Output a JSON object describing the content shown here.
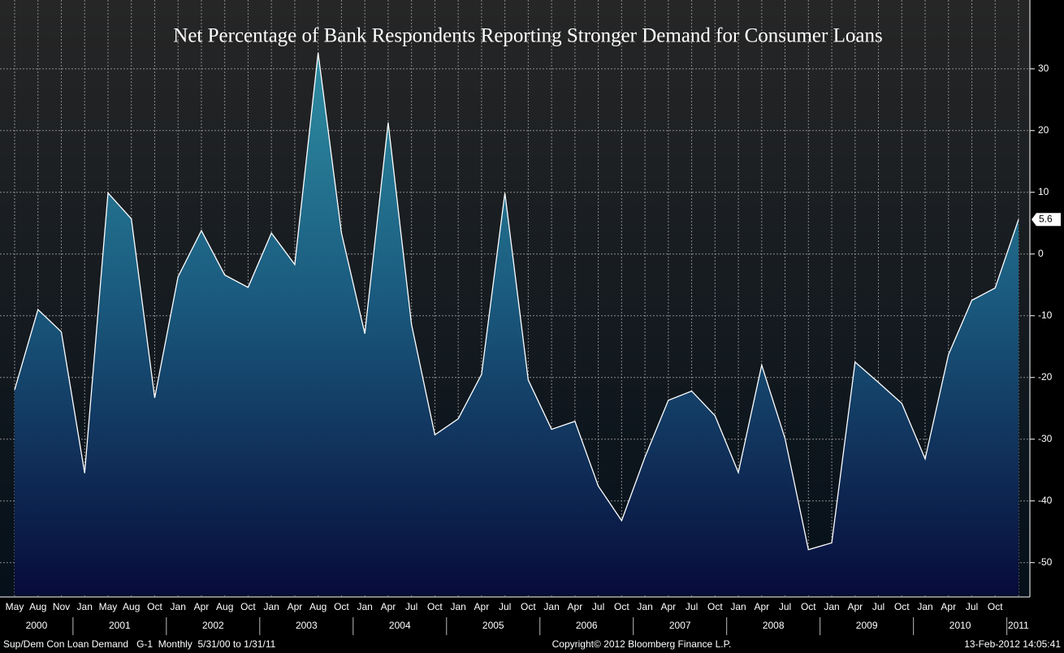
{
  "chart_data": {
    "type": "area",
    "title": "Net Percentage of Bank Respondents Reporting Stronger Demand for Consumer Loans",
    "categories": [
      "May",
      "Aug",
      "Nov",
      "Jan",
      "May",
      "Aug",
      "Oct",
      "Jan",
      "Apr",
      "Aug",
      "Oct",
      "Jan",
      "Apr",
      "Aug",
      "Oct",
      "Jan",
      "Apr",
      "Jul",
      "Oct",
      "Jan",
      "Apr",
      "Jul",
      "Oct",
      "Jan",
      "Apr",
      "Jul",
      "Oct",
      "Jan",
      "Apr",
      "Jul",
      "Oct",
      "Jan",
      "Apr",
      "Jul",
      "Oct",
      "Jan",
      "Apr",
      "Jul",
      "Oct",
      "Jan",
      "Apr",
      "Jul",
      "Oct",
      null
    ],
    "years": [
      {
        "label": "2000",
        "months": 3
      },
      {
        "label": "2001",
        "months": 4
      },
      {
        "label": "2002",
        "months": 4
      },
      {
        "label": "2003",
        "months": 4
      },
      {
        "label": "2004",
        "months": 4
      },
      {
        "label": "2005",
        "months": 4
      },
      {
        "label": "2006",
        "months": 4
      },
      {
        "label": "2007",
        "months": 4
      },
      {
        "label": "2008",
        "months": 4
      },
      {
        "label": "2009",
        "months": 4
      },
      {
        "label": "2010",
        "months": 4
      },
      {
        "label": "2011",
        "months": 1
      }
    ],
    "series": [
      {
        "name": "Sup/Dem Con Loan Demand",
        "color": "#ffffff",
        "values": [
          -22,
          -9,
          -12.6,
          -35.5,
          9.9,
          5.7,
          -23.3,
          -3.7,
          3.8,
          -3.4,
          -5.4,
          3.4,
          -1.7,
          32.6,
          3.4,
          -12.9,
          21.3,
          -11.4,
          -29.3,
          -26.7,
          -19.5,
          9.9,
          -20.4,
          -28.4,
          -27.1,
          -37.6,
          -43.2,
          -32.9,
          -23.7,
          -22.2,
          -26.2,
          -35.4,
          -18,
          -29.9,
          -47.9,
          -46.8,
          -17.5,
          -20.8,
          -24.2,
          -33.2,
          -16.3,
          -7.5,
          -5.5,
          5.6
        ]
      }
    ],
    "ylim": [
      -55.3,
      40.5
    ],
    "yticks": [
      -50,
      -40,
      -30,
      -20,
      -10,
      0,
      10,
      20,
      30
    ],
    "grid": true,
    "footer": {
      "left": "Sup/Dem Con Loan Demand   G-1  Monthly  5/31/00 to 1/31/11",
      "center": "Copyright© 2012 Bloomberg Finance L.P.",
      "right": "13-Feb-2012 14:05:41"
    }
  }
}
